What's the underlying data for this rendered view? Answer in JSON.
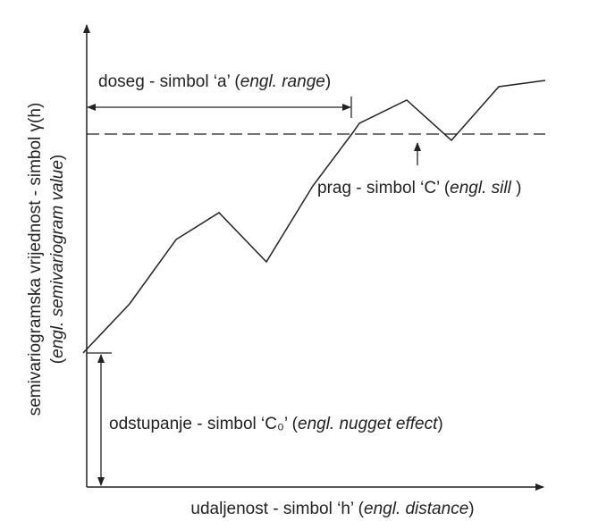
{
  "labels": {
    "y_axis_line1": "semivariogramska vrijednost - simbol γ(h)",
    "y_axis_line2": {
      "before": "(",
      "italic": "engl. semivariogram value",
      "after": ")"
    },
    "range": {
      "before": "doseg - simbol ‘a’ (",
      "italic": "engl. range",
      "after": ")"
    },
    "sill": {
      "before": "prag - simbol ‘C’ (",
      "italic": "engl. sill",
      "after": " )"
    },
    "nugget": {
      "before": "odstupanje - simbol ‘C₀’ (",
      "italic": "engl. nugget effect",
      "after": ")"
    },
    "x_axis": {
      "before": "udaljenost - simbol ‘h’ (",
      "italic": "engl. distance",
      "after": ")"
    }
  }
}
